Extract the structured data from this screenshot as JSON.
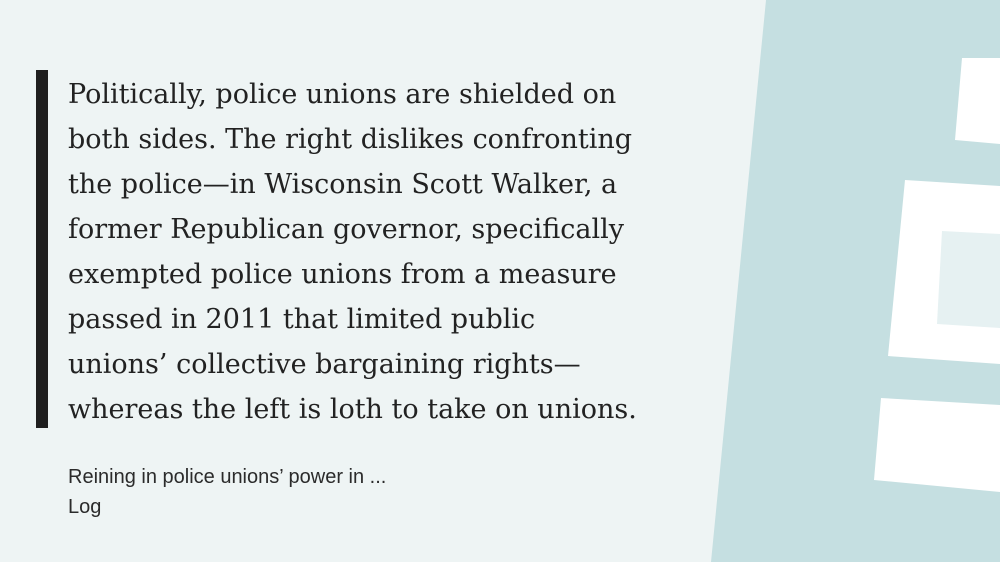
{
  "quote": {
    "lines": [
      "Politically, police unions are shielded on",
      "both sides. The right dislikes confronting",
      "the police—in Wisconsin Scott Walker, a",
      "former Republican governor, specifically",
      "exempted police unions from a measure",
      "passed in 2011 that limited public",
      "unions’ collective bargaining rights—",
      "whereas the left is loth to take on unions."
    ]
  },
  "source": {
    "title": "Reining in police unions’ power in ...",
    "site": "Log"
  },
  "colors": {
    "background": "#eef4f4",
    "panel": "#c5dfe1",
    "accent_bar": "#1f1f1f",
    "text": "#222222",
    "blocks": "#ffffff"
  }
}
